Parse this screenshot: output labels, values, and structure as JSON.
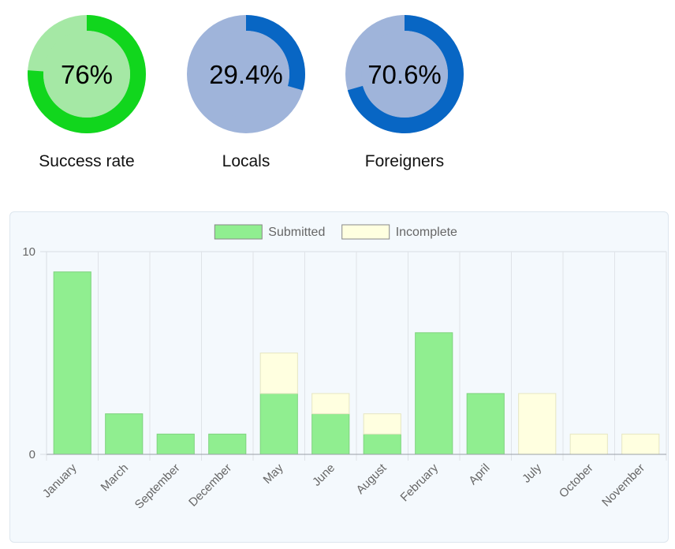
{
  "gauges": [
    {
      "label": "Success rate",
      "value": 76,
      "display": "76%",
      "track_color": "#a5e8a5",
      "fill_color": "#11d61d"
    },
    {
      "label": "Locals",
      "value": 29.4,
      "display": "29.4%",
      "track_color": "#9fb4da",
      "fill_color": "#0866c4"
    },
    {
      "label": "Foreigners",
      "value": 70.6,
      "display": "70.6%",
      "track_color": "#9fb4da",
      "fill_color": "#0866c4"
    }
  ],
  "chart_data": {
    "type": "bar",
    "stacked": true,
    "categories": [
      "January",
      "March",
      "September",
      "December",
      "May",
      "June",
      "August",
      "February",
      "April",
      "July",
      "October",
      "November"
    ],
    "series": [
      {
        "name": "Submitted",
        "values": [
          9,
          2,
          1,
          1,
          3,
          2,
          1,
          6,
          3,
          0,
          0,
          0
        ],
        "color": "#90ee90",
        "border": "#7fd37f"
      },
      {
        "name": "Incomplete",
        "values": [
          0,
          0,
          0,
          0,
          2,
          1,
          1,
          0,
          0,
          3,
          1,
          1
        ],
        "color": "#ffffe0",
        "border": "#e6e6c2"
      }
    ],
    "ylim": [
      0,
      10
    ],
    "yticks": [
      "0",
      "10"
    ],
    "legend_position": "top-center",
    "grid": true
  }
}
